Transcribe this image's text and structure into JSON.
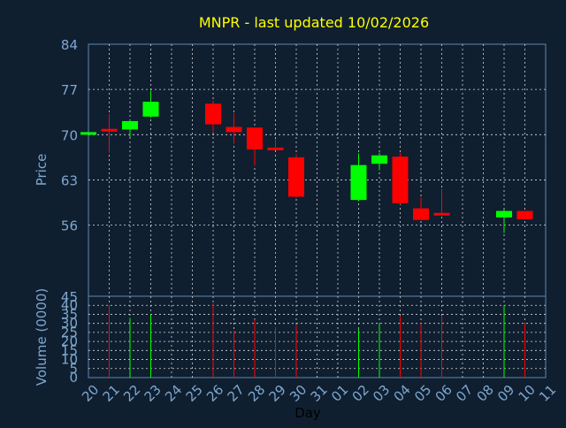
{
  "title": "MNPR - last updated 10/02/2026",
  "colors": {
    "background": "#0f1f30",
    "title": "#ffff00",
    "axis_text": "#7fa7cf",
    "grid": "#d8d8d8",
    "frame": "#5f87af",
    "up": "#00ff00",
    "down": "#ff0000",
    "xlabel": "#000000"
  },
  "chart_data": [
    {
      "type": "candlestick",
      "ylabel": "Price",
      "ylim": [
        45,
        84
      ],
      "yticks": [
        84,
        77,
        70,
        63,
        56,
        45
      ],
      "grid": true,
      "categories": [
        "20",
        "21",
        "22",
        "23",
        "24",
        "25",
        "26",
        "27",
        "28",
        "29",
        "30",
        "31",
        "01",
        "02",
        "03",
        "04",
        "05",
        "06",
        "07",
        "08",
        "09",
        "10",
        "11"
      ],
      "candles": [
        {
          "x": "20",
          "open": 70.2,
          "high": 70.4,
          "low": 69.9,
          "close": 70.4
        },
        {
          "x": "21",
          "open": 70.9,
          "high": 73.2,
          "low": 67.2,
          "close": 70.6
        },
        {
          "x": "22",
          "open": 70.8,
          "high": 72.4,
          "low": 69.6,
          "close": 72.1
        },
        {
          "x": "23",
          "open": 72.8,
          "high": 76.8,
          "low": 72.6,
          "close": 75.1
        },
        {
          "x": "26",
          "open": 74.8,
          "high": 75.3,
          "low": 70.4,
          "close": 71.6
        },
        {
          "x": "27",
          "open": 71.2,
          "high": 73.3,
          "low": 68.6,
          "close": 70.4
        },
        {
          "x": "28",
          "open": 71.1,
          "high": 71.1,
          "low": 65.2,
          "close": 67.7
        },
        {
          "x": "29",
          "open": 68.0,
          "high": 69.3,
          "low": 67.6,
          "close": 67.6
        },
        {
          "x": "30",
          "open": 66.5,
          "high": 67.0,
          "low": 60.2,
          "close": 60.4
        },
        {
          "x": "02",
          "open": 59.9,
          "high": 67.1,
          "low": 59.7,
          "close": 65.3
        },
        {
          "x": "03",
          "open": 65.5,
          "high": 67.2,
          "low": 64.5,
          "close": 66.8
        },
        {
          "x": "04",
          "open": 66.6,
          "high": 67.2,
          "low": 59.2,
          "close": 59.4
        },
        {
          "x": "05",
          "open": 58.6,
          "high": 60.3,
          "low": 56.8,
          "close": 56.8
        },
        {
          "x": "06",
          "open": 57.9,
          "high": 61.6,
          "low": 57.6,
          "close": 57.6
        },
        {
          "x": "09",
          "open": 57.2,
          "high": 58.4,
          "low": 54.8,
          "close": 58.2
        },
        {
          "x": "10",
          "open": 58.2,
          "high": 58.2,
          "low": 56.9,
          "close": 56.9
        }
      ]
    },
    {
      "type": "bar",
      "xlabel": "Day",
      "ylabel": "Volume (0000)",
      "ylim": [
        0,
        45
      ],
      "yticks": [
        40,
        35,
        30,
        25,
        20,
        15,
        10,
        5,
        0
      ],
      "grid": true,
      "categories": [
        "20",
        "21",
        "22",
        "23",
        "24",
        "25",
        "26",
        "27",
        "28",
        "29",
        "30",
        "31",
        "01",
        "02",
        "03",
        "04",
        "05",
        "06",
        "07",
        "08",
        "09",
        "10",
        "11"
      ],
      "bars": [
        {
          "x": "21",
          "value": 40,
          "direction": "down"
        },
        {
          "x": "22",
          "value": 33,
          "direction": "up"
        },
        {
          "x": "23",
          "value": 35,
          "direction": "up"
        },
        {
          "x": "26",
          "value": 41,
          "direction": "down"
        },
        {
          "x": "27",
          "value": 26,
          "direction": "down"
        },
        {
          "x": "28",
          "value": 32,
          "direction": "down"
        },
        {
          "x": "29",
          "value": 28,
          "direction": "down"
        },
        {
          "x": "30",
          "value": 29,
          "direction": "down"
        },
        {
          "x": "02",
          "value": 27,
          "direction": "up"
        },
        {
          "x": "03",
          "value": 30,
          "direction": "up"
        },
        {
          "x": "04",
          "value": 34,
          "direction": "down"
        },
        {
          "x": "05",
          "value": 30,
          "direction": "down"
        },
        {
          "x": "06",
          "value": 34,
          "direction": "down"
        },
        {
          "x": "09",
          "value": 40,
          "direction": "up"
        },
        {
          "x": "10",
          "value": 30,
          "direction": "down"
        }
      ]
    }
  ]
}
